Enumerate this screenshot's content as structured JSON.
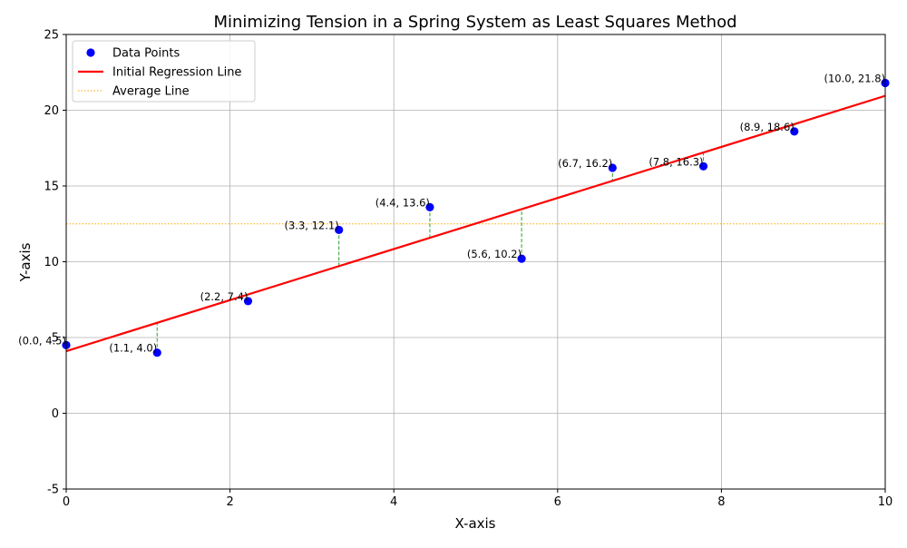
{
  "chart_data": {
    "type": "scatter",
    "title": "Minimizing Tension in a Spring System as Least Squares Method",
    "xlabel": "X-axis",
    "ylabel": "Y-axis",
    "xlim": [
      0,
      10
    ],
    "ylim": [
      -5,
      25
    ],
    "x_ticks": [
      0,
      2,
      4,
      6,
      8,
      10
    ],
    "y_ticks": [
      -5,
      0,
      5,
      10,
      15,
      20,
      25
    ],
    "grid": true,
    "legend_position": "top-left",
    "series": [
      {
        "name": "Data Points",
        "kind": "scatter",
        "color": "#0000ff",
        "x": [
          0.0,
          1.11,
          2.22,
          3.33,
          4.44,
          5.56,
          6.67,
          7.78,
          8.89,
          10.0
        ],
        "y": [
          4.5,
          4.0,
          7.4,
          12.1,
          13.6,
          10.2,
          16.2,
          16.3,
          18.6,
          21.8
        ],
        "labels": [
          "(0.0, 4.5)",
          "(1.1, 4.0)",
          "(2.2, 7.4)",
          "(3.3, 12.1)",
          "(4.4, 13.6)",
          "(5.6, 10.2)",
          "(6.7, 16.2)",
          "(7.8, 16.3)",
          "(8.9, 18.6)",
          "(10.0, 21.8)"
        ]
      },
      {
        "name": "Initial Regression Line",
        "kind": "line",
        "color": "#ff0000",
        "x": [
          0,
          10
        ],
        "y": [
          4.1,
          20.95
        ]
      },
      {
        "name": "Average Line",
        "kind": "hline",
        "color": "#ffa500",
        "y": 12.5
      }
    ],
    "residuals": {
      "color": "#2ca02c",
      "style": "dashed"
    }
  }
}
